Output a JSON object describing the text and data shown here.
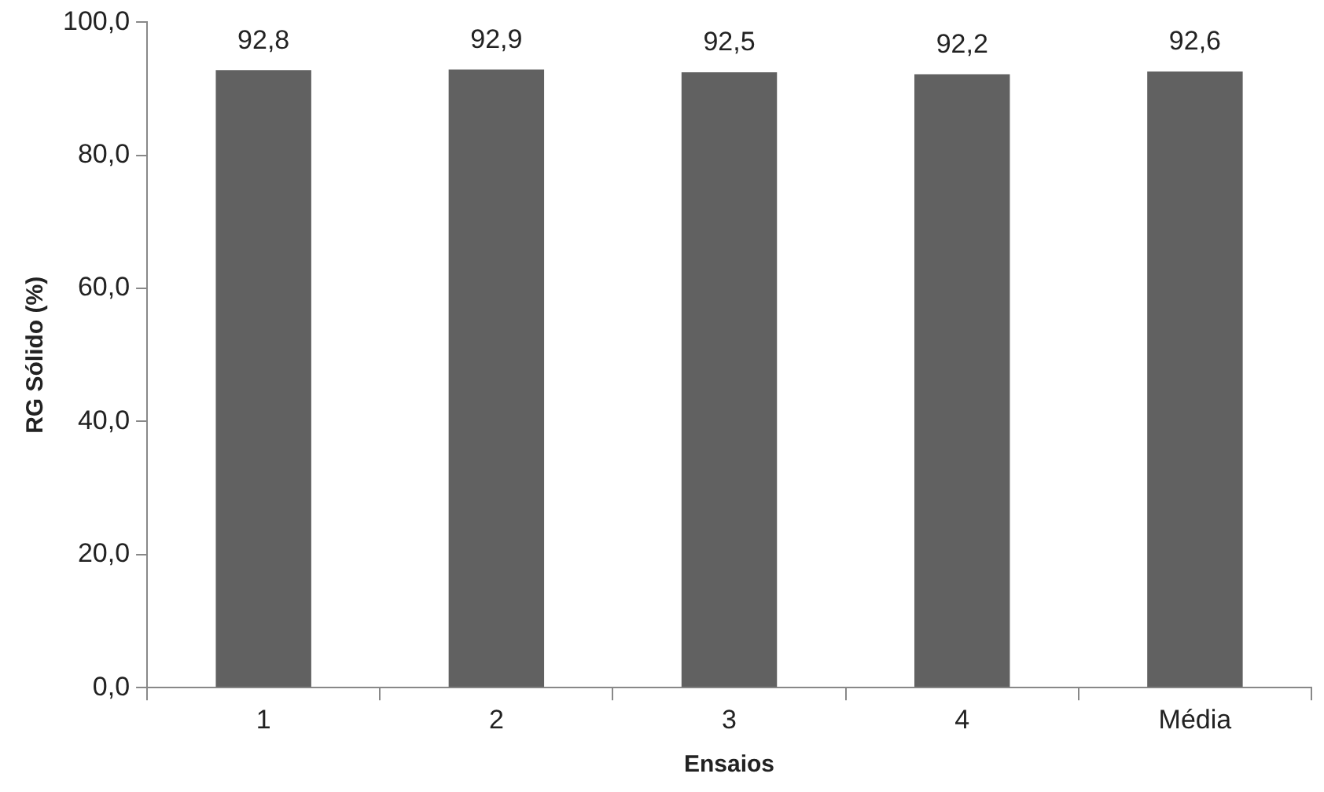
{
  "chart_data": {
    "type": "bar",
    "xlabel": "Ensaios",
    "ylabel": "RG Sólido (%)",
    "categories": [
      "1",
      "2",
      "3",
      "4",
      "Média"
    ],
    "values": [
      92.8,
      92.9,
      92.5,
      92.2,
      92.6
    ],
    "value_labels": [
      "92,8",
      "92,9",
      "92,5",
      "92,2",
      "92,6"
    ],
    "color": "#616161",
    "ylim": [
      0,
      100
    ],
    "yticks": [
      {
        "value": 0,
        "label": "0,0"
      },
      {
        "value": 20,
        "label": "20,0"
      },
      {
        "value": 40,
        "label": "40,0"
      },
      {
        "value": 60,
        "label": "60,0"
      },
      {
        "value": 80,
        "label": "80,0"
      },
      {
        "value": 100,
        "label": "100,0"
      }
    ],
    "grid": false,
    "legend": false
  }
}
